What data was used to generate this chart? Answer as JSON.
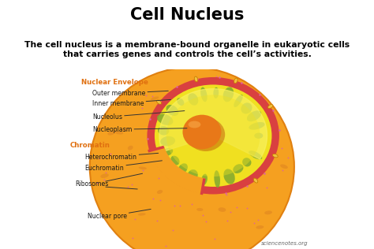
{
  "title": "Cell Nucleus",
  "subtitle": "The cell nucleus is a membrane-bound organelle in eukaryotic cells\nthat carries genes and controls the cell’s activities.",
  "subtitle_bg": "#f5c98a",
  "title_color": "#000000",
  "subtitle_color": "#000000",
  "watermark": "sciencenotes.org",
  "colors": {
    "outer_cell_fill": "#f5a020",
    "outer_cell_edge": "#e08010",
    "nuclear_envelope_red": "#d94040",
    "nucleoplasm_yellow": "#f0e020",
    "nucleoplasm_bright": "#f8f060",
    "green_chromatin": "#80a830",
    "nucleolus_orange": "#e87818",
    "nucleolus_dark": "#c05808",
    "nucleolus_light": "#f5a040",
    "cytoplasm_pink_dot": "#e060a0",
    "cytoplasm_orange_dot": "#e89020",
    "label_orange": "#e07010",
    "label_black": "#1a1a1a",
    "bg_white": "#ffffff",
    "watermark_color": "#666666"
  },
  "labels": {
    "nuclear_envelope": "Nuclear Envelope",
    "outer_membrane": "Outer membrane",
    "inner_membrane": "Inner membrane",
    "nucleolus": "Nucleolus",
    "nucleoplasm": "Nucleoplasm",
    "chromatin": "Chromatin",
    "heterochromatin": "Heterochromatin",
    "euchromatin": "Euchromatin",
    "ribosomes": "Ribosomes",
    "nuclear_pore": "Nuclear pore"
  }
}
